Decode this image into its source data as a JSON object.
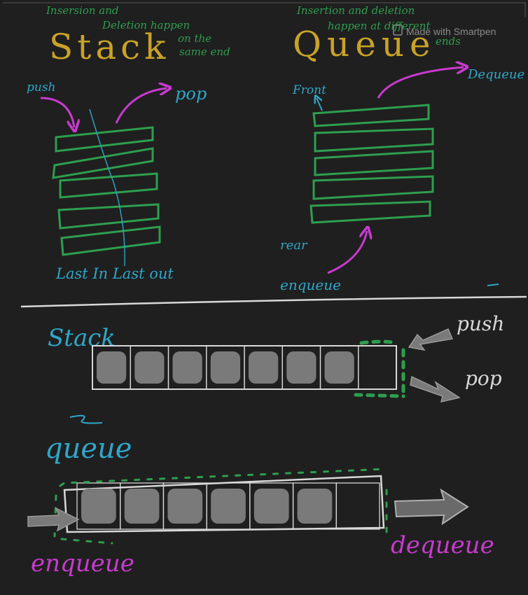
{
  "colors": {
    "background": "#1f1f1f",
    "green": "#2e9e4f",
    "blue": "#2fa7c9",
    "magenta": "#c93ad0",
    "gold": "#c9a227",
    "white": "#d8d8d8",
    "gray": "#7a7a7a"
  },
  "watermark": "Made with Smartpen",
  "top": {
    "stack": {
      "title": "Stack",
      "note_line1": "Insersion and",
      "note_line2": "Deletion happen",
      "note_line3": "on the",
      "note_line4": "same end",
      "push_label": "push",
      "pop_label": "pop",
      "caption": "Last In Last out"
    },
    "queue": {
      "title": "Queue",
      "note_line1": "Insertion and deletion",
      "note_line2": "happen at different",
      "note_line3": "ends",
      "front_label": "Front",
      "dequeue_label": "Dequeue",
      "rear_label": "rear",
      "enqueue_label": "enqueue"
    }
  },
  "bottom": {
    "stack": {
      "title": "Stack",
      "push_label": "push",
      "pop_label": "pop",
      "filled_cells": 7,
      "total_cells": 8
    },
    "queue": {
      "title": "queue",
      "enqueue_label": "enqueue",
      "dequeue_label": "dequeue",
      "filled_cells": 6,
      "total_cells": 7
    }
  }
}
